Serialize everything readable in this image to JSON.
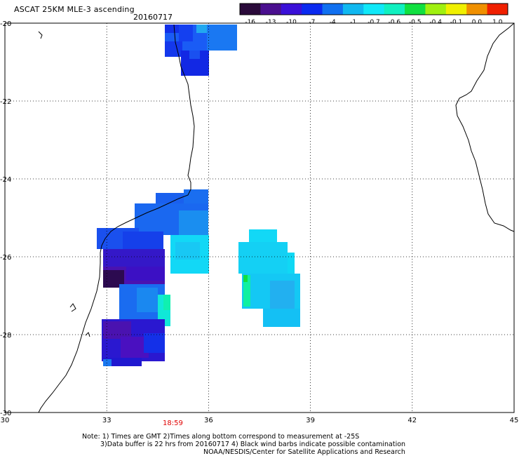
{
  "title": "ASCAT 25KM MLE-3 ascending",
  "date": "20160717",
  "colorbar": {
    "labels": [
      "-16",
      "-13",
      "-10",
      "-7",
      "-4",
      "-1",
      "-0.7",
      "-0.6",
      "-0.5",
      "-0.4",
      "-0.1",
      "0.0",
      "1.0"
    ],
    "colors": [
      "#2a0a3a",
      "#4a0f8f",
      "#3a10d8",
      "#0a2af0",
      "#1070f0",
      "#10b8f0",
      "#10e8f8",
      "#10f0c0",
      "#10e040",
      "#a0f010",
      "#f0f000",
      "#f09000",
      "#f02000"
    ]
  },
  "axes": {
    "x_ticks": [
      "30",
      "33",
      "36",
      "39",
      "42",
      "45"
    ],
    "y_ticks": [
      "-20",
      "-22",
      "-24",
      "-26",
      "-28",
      "-30"
    ],
    "x_range": [
      30,
      45
    ],
    "y_range": [
      -30,
      -20
    ]
  },
  "time_label": "18:59",
  "notes": {
    "line1": "Note: 1) Times are GMT 2)Times along bottom correspond to measurement at -25S",
    "line2": "3)Data buffer is 22 hrs from 20160717 4) Black wind barbs indicate possible contamination",
    "line3": "NOAA/NESDIS/Center for Satellite Applications and Research"
  }
}
